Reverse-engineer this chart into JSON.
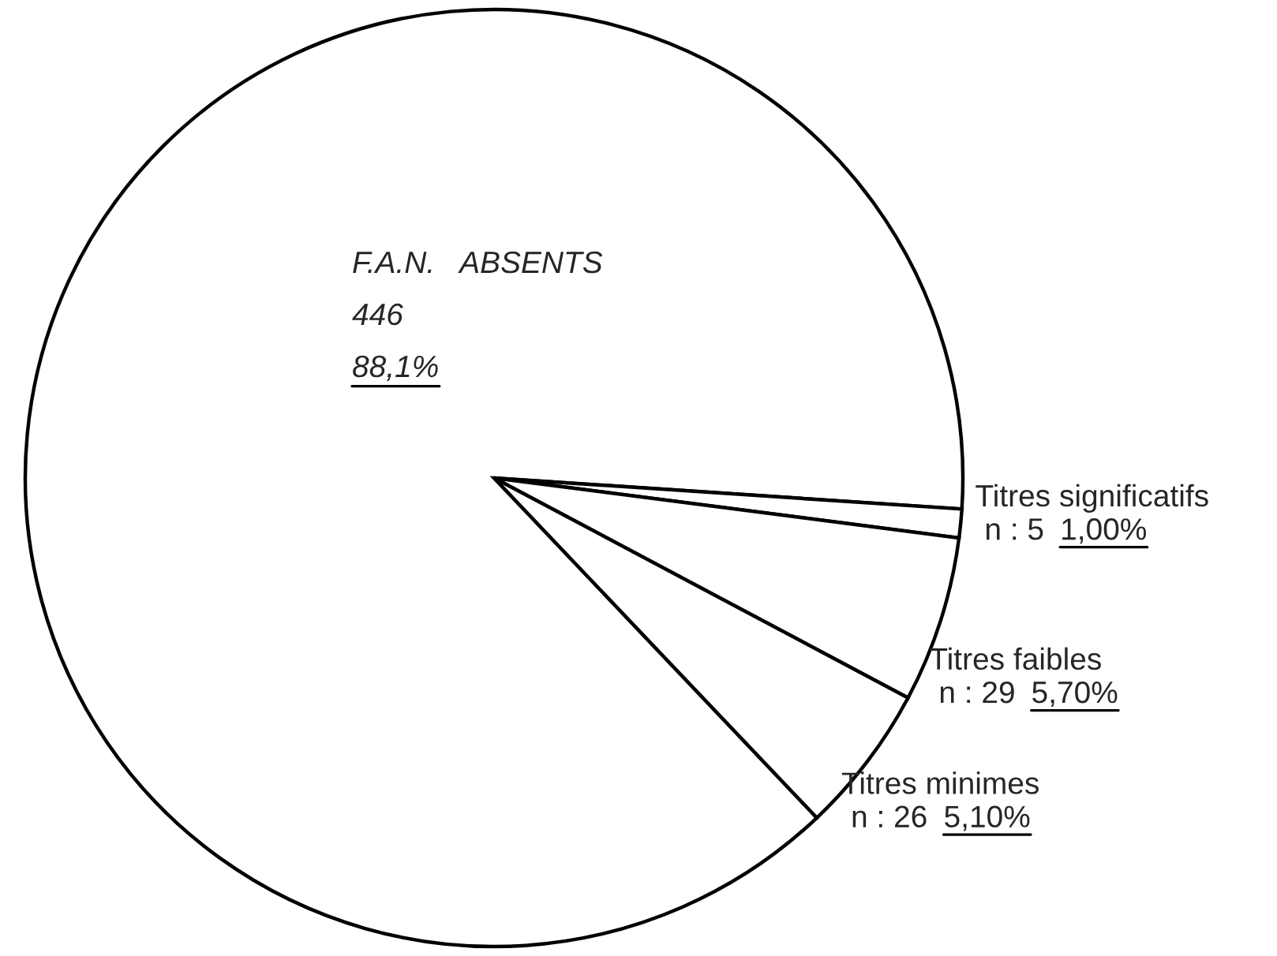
{
  "chart_data": {
    "type": "pie",
    "categories": [
      "F.A.N.   ABSENTS",
      "Titres significatifs",
      "Titres faibles",
      "Titres minimes"
    ],
    "values": [
      446,
      5,
      29,
      26
    ],
    "value_labels": [
      "446\n88,1%",
      "n : 5  1,00%",
      "n : 29   5,70%",
      "n : 26   5,10%"
    ],
    "colors": [
      "#ffffff",
      "#ffffff",
      "#ffffff",
      "#ffffff"
    ]
  }
}
